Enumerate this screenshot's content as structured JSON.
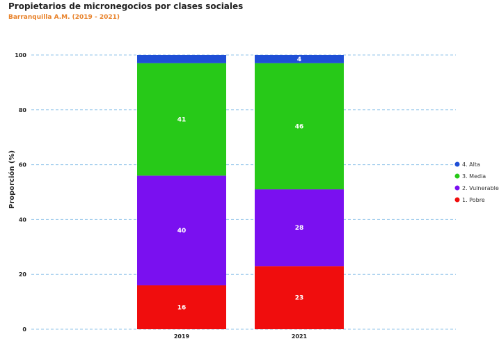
{
  "header": {
    "title": "Propietarios de micronegocios por clases sociales",
    "subtitle": "Barranquilla A.M. (2019 - 2021)"
  },
  "chart_data": {
    "type": "bar",
    "stacked": true,
    "categories": [
      "2019",
      "2021"
    ],
    "series": [
      {
        "name": "1. Pobre",
        "values": [
          16,
          23
        ],
        "labels": [
          "16",
          "23"
        ],
        "color": "#f00d0d"
      },
      {
        "name": "2. Vulnerable",
        "values": [
          40,
          28
        ],
        "labels": [
          "40",
          "28"
        ],
        "color": "#7a10f0"
      },
      {
        "name": "3. Media",
        "values": [
          41,
          46
        ],
        "labels": [
          "41",
          "46"
        ],
        "color": "#27c918"
      },
      {
        "name": "4. Alta",
        "values": [
          3,
          3.5
        ],
        "labels": [
          "",
          "4"
        ],
        "color": "#1f4fd6"
      }
    ],
    "ylabel": "Proporción (%)",
    "xlabel": "",
    "ylim": [
      0,
      100
    ],
    "yticks": [
      0,
      20,
      40,
      60,
      80,
      100
    ],
    "grid": true,
    "grid_color": "#8fc3ea",
    "legend_position": "right",
    "legend_order": [
      "4. Alta",
      "3. Media",
      "2. Vulnerable",
      "1. Pobre"
    ]
  }
}
